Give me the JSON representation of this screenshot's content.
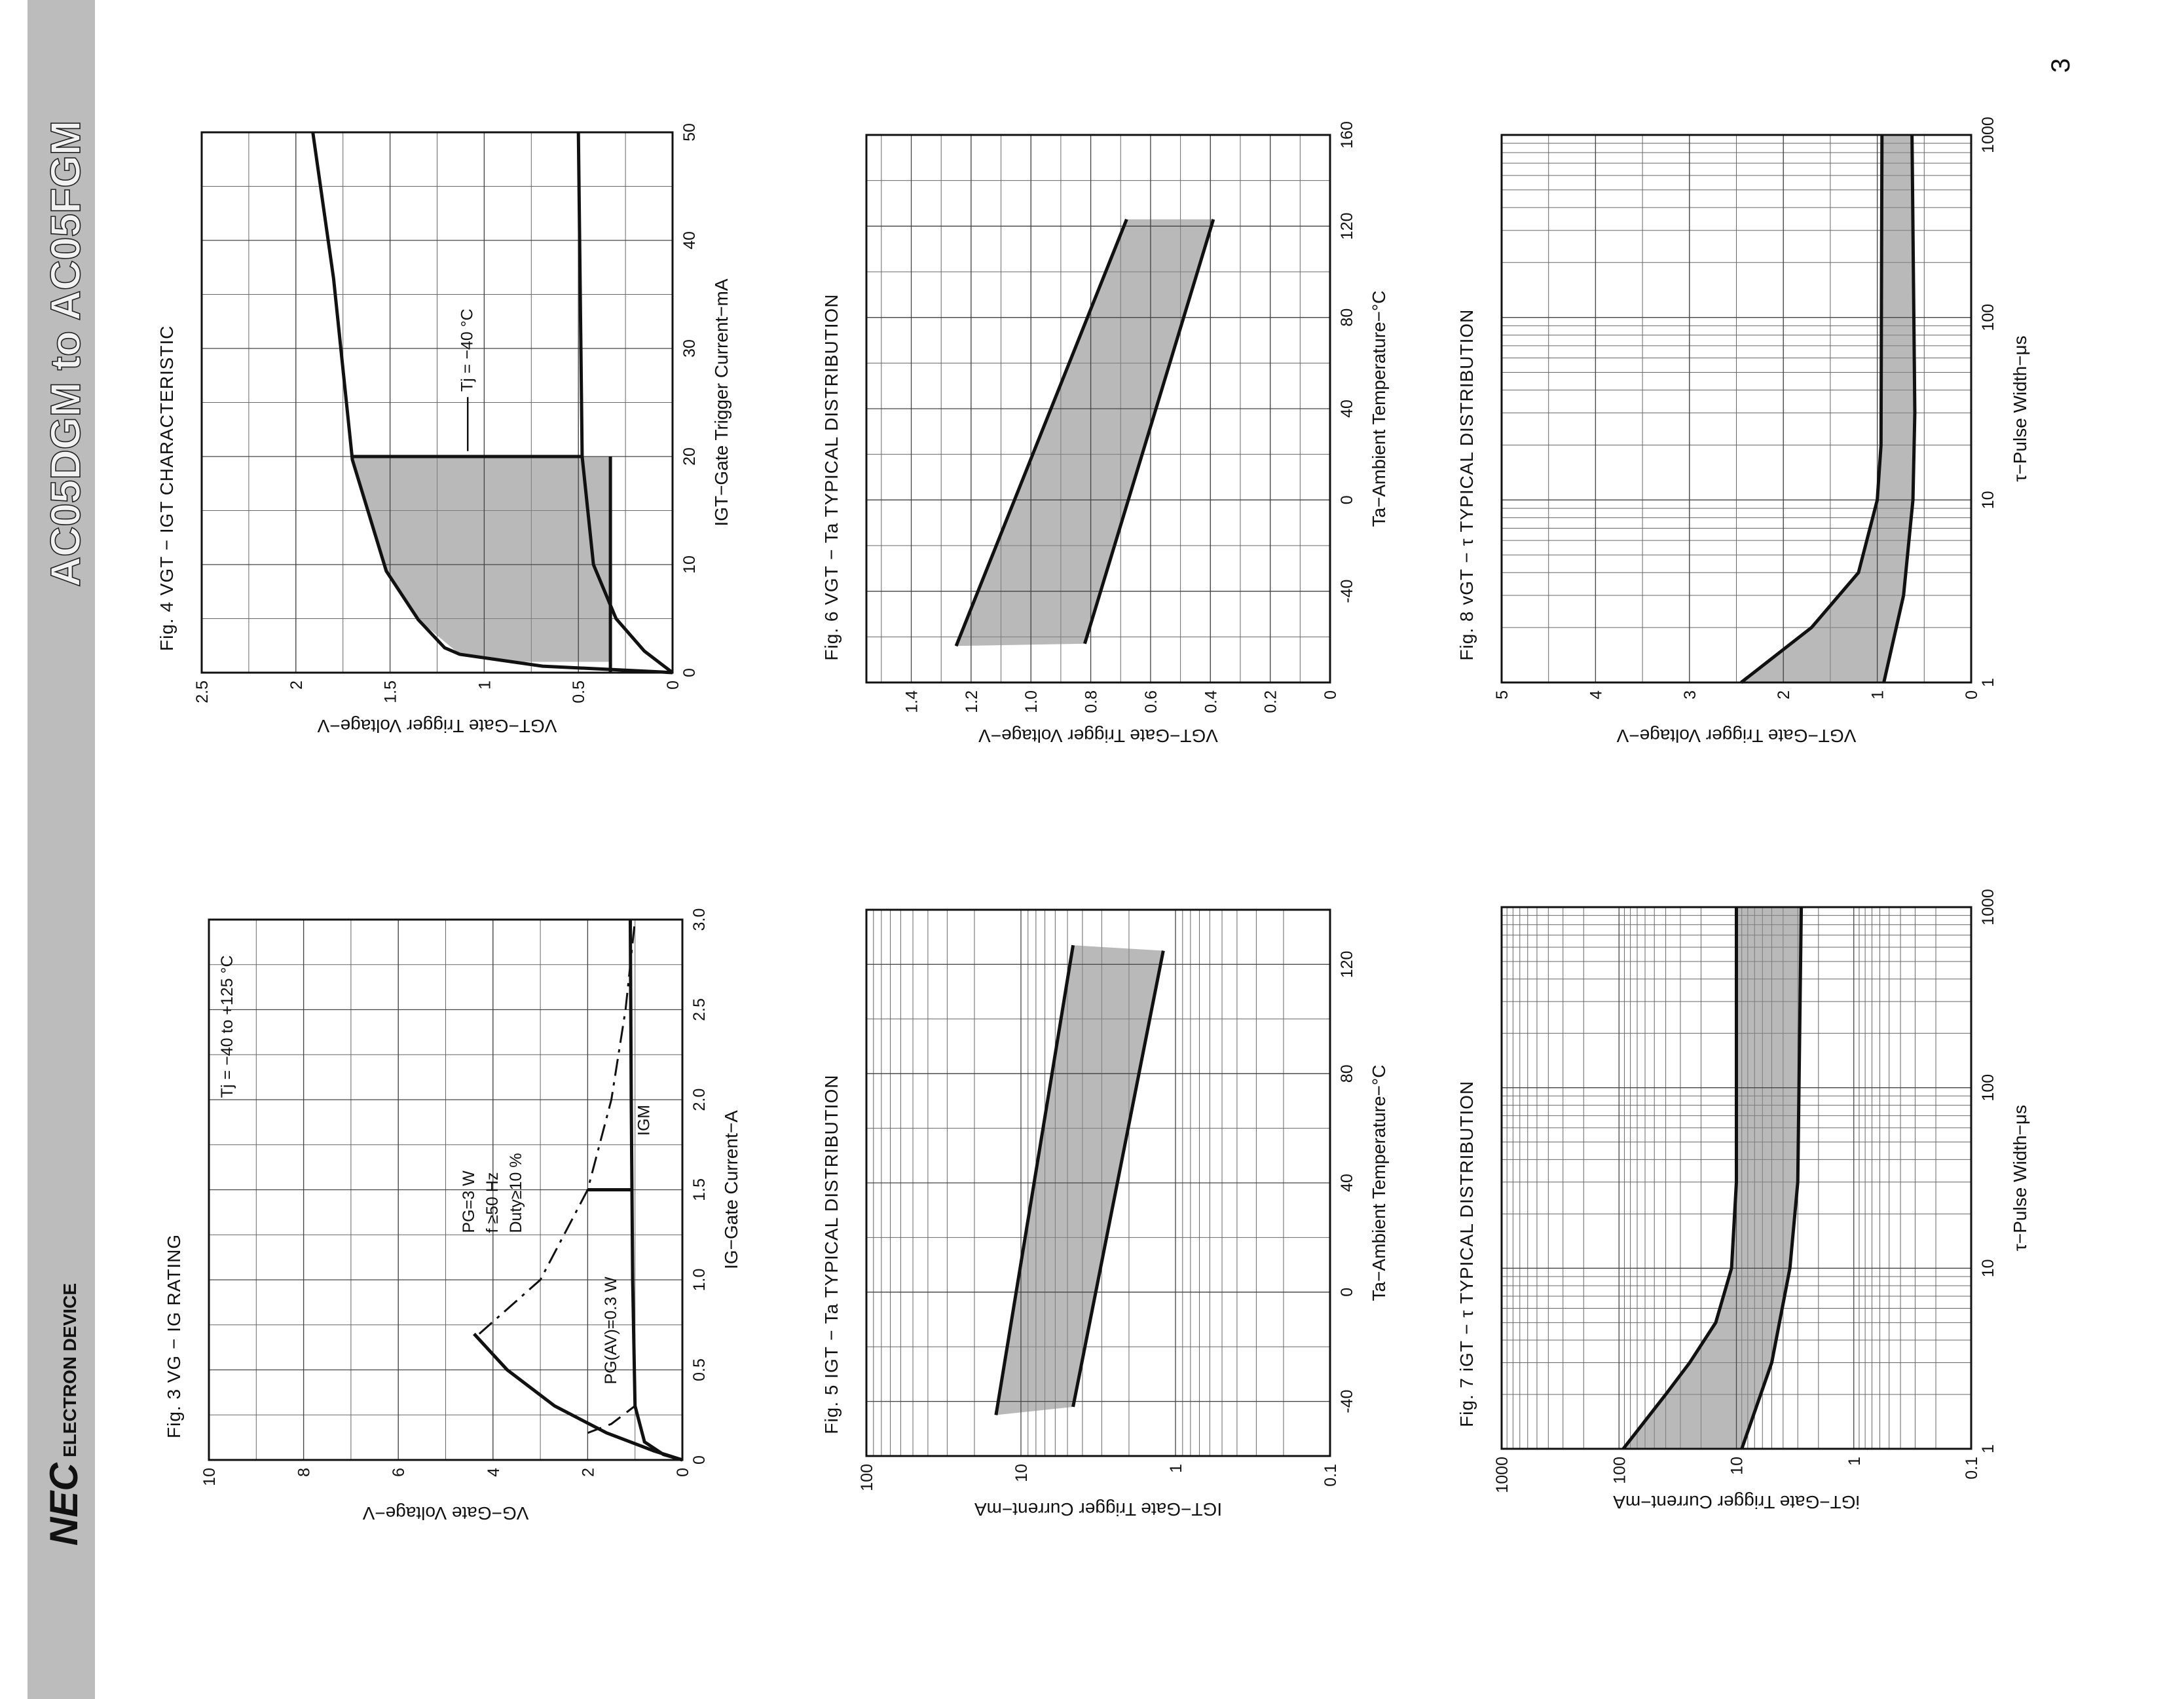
{
  "header": {
    "title": "AC05DGM to AC05FGM",
    "brand": "NEC",
    "division": "ELECTRON DEVICE",
    "page": "3"
  },
  "chart_data": [
    {
      "type": "line",
      "title": "Fig. 3 VG − IG RATING",
      "xlabel": "IG−Gate Current−A",
      "ylabel": "VG−Gate Voltage−V",
      "xlim": [
        0,
        3
      ],
      "ylim": [
        0,
        10
      ],
      "xticks": [
        0,
        0.5,
        {
          "value": 1,
          "label": "1.0"
        },
        1.5,
        {
          "value": 2,
          "label": "2.0"
        },
        2.5,
        {
          "value": 3,
          "label": "3.0"
        }
      ],
      "yticks": [
        0,
        2,
        4,
        6,
        8,
        10
      ],
      "xgrid_step": 0.25,
      "ygrid_step": 1,
      "annotations": [
        "Tj = −40 to +125 °C",
        "PG=3 W",
        "f ≥50 Hz",
        "Duty≥10 %",
        "PG(AV)=0.3 W",
        "IGM"
      ],
      "series": [
        {
          "x": [
            0,
            0.05,
            0.15,
            0.3,
            0.5,
            0.7
          ],
          "values": [
            0,
            0.6,
            1.6,
            2.7,
            3.7,
            4.4
          ],
          "color": "#111111",
          "dash": "solid"
        },
        {
          "x": [
            0.7,
            1,
            1.5,
            2,
            2.5,
            3
          ],
          "values": [
            4.29,
            3,
            2,
            1.5,
            1.2,
            1
          ],
          "color": "#111111",
          "dash": "dashdot"
        },
        {
          "x": [
            0.15,
            0.2,
            0.3
          ],
          "values": [
            2,
            1.5,
            1
          ],
          "color": "#111111",
          "dash": "dashed"
        },
        {
          "x": [
            0,
            0.03,
            0.1,
            0.3,
            1,
            2,
            3
          ],
          "values": [
            0,
            0.4,
            0.8,
            1,
            1.05,
            1.08,
            1.1
          ],
          "color": "#111111",
          "dash": "solid"
        },
        {
          "x": [
            1.5,
            1.5
          ],
          "values": [
            2,
            1.08
          ],
          "color": "#111111",
          "dash": "solid"
        }
      ]
    },
    {
      "type": "line",
      "title": "Fig. 4 VGT − IGT CHARACTERISTIC",
      "xlabel": "IGT−Gate Trigger Current−mA",
      "ylabel": "VGT−Gate Trigger Voltage−V",
      "xlim": [
        0,
        50
      ],
      "ylim": [
        0,
        2.5
      ],
      "xticks": [
        0,
        10,
        20,
        30,
        40,
        50
      ],
      "yticks": [
        0,
        0.5,
        1,
        1.5,
        2,
        2.5
      ],
      "xgrid_step": 5,
      "ygrid_step": 0.25,
      "annotations": [
        "Tj = −40 °C"
      ],
      "fills": [
        {
          "x": [
            1,
            1.7,
            4.9,
            9.4,
            20
          ],
          "upper": [
            0.9,
            1.13,
            1.35,
            1.52,
            1.7
          ],
          "lower": [
            0.33,
            0.33,
            0.33,
            0.33,
            0.33
          ],
          "color": "#8a8a8a"
        }
      ],
      "series": [
        {
          "x": [
            0,
            0.1,
            0.6,
            1.7,
            2.3,
            4.9,
            9.4,
            19.7,
            36.5,
            50
          ],
          "values": [
            0,
            0.1,
            0.69,
            1.13,
            1.21,
            1.35,
            1.52,
            1.7,
            1.8,
            1.91
          ],
          "color": "#111111",
          "dash": "solid"
        },
        {
          "x": [
            0,
            2,
            5,
            10,
            20,
            50
          ],
          "values": [
            0,
            0.15,
            0.3,
            0.42,
            0.48,
            0.5
          ],
          "color": "#111111",
          "dash": "solid"
        },
        {
          "x": [
            20,
            20
          ],
          "values": [
            1.7,
            0.48
          ],
          "color": "#111111",
          "dash": "solid"
        },
        {
          "x": [
            0,
            20
          ],
          "values": [
            0.33,
            0.33
          ],
          "color": "#111111",
          "dash": "solid"
        }
      ]
    },
    {
      "type": "band",
      "title": "Fig. 5 IGT − Ta TYPICAL DISTRIBUTION",
      "xlabel": "Ta−Ambient Temperature−°C",
      "ylabel": "IGT−Gate Trigger Current−mA",
      "xlim": [
        -60,
        140
      ],
      "ylim": [
        0.1,
        100
      ],
      "ylog": true,
      "xticks": [
        -40,
        0,
        40,
        80,
        120
      ],
      "yticks": [
        0.1,
        1,
        10,
        100
      ],
      "xgrid_step": 20,
      "fill_between": [
        0,
        1
      ],
      "fill_color": "#8a8a8a",
      "series": [
        {
          "x": [
            -45,
            127
          ],
          "values": [
            14.5,
            4.6
          ],
          "color": "#111111",
          "dash": "solid"
        },
        {
          "x": [
            -42,
            125
          ],
          "values": [
            4.6,
            1.2
          ],
          "color": "#111111",
          "dash": "solid"
        }
      ]
    },
    {
      "type": "band",
      "title": "Fig. 6 VGT − Ta TYPICAL DISTRIBUTION",
      "xlabel": "Ta−Ambient Temperature−°C",
      "ylabel": "VGT−Gate Trigger Voltage−V",
      "xlim": [
        -80,
        160
      ],
      "ylim": [
        0,
        1.55
      ],
      "xticks": [
        -40,
        0,
        40,
        80,
        120,
        160
      ],
      "yticks": [
        0,
        0.2,
        0.4,
        0.6,
        0.8,
        {
          "value": 1,
          "label": "1.0"
        },
        1.2,
        1.4
      ],
      "xgrid_step": 20,
      "ygrid_step": 0.1,
      "fill_between": [
        0,
        1
      ],
      "fill_color": "#8a8a8a",
      "series": [
        {
          "x": [
            -64,
            123
          ],
          "values": [
            1.25,
            0.68
          ],
          "color": "#111111",
          "dash": "solid"
        },
        {
          "x": [
            -63,
            123
          ],
          "values": [
            0.82,
            0.39
          ],
          "color": "#111111",
          "dash": "solid"
        }
      ]
    },
    {
      "type": "band",
      "title": "Fig. 7 iGT − τ TYPICAL DISTRIBUTION",
      "xlabel": "τ−Pulse Width−μs",
      "ylabel": "iGT−Gate Trigger Current−mA",
      "xlim": [
        1,
        1000
      ],
      "ylim": [
        0.1,
        1000
      ],
      "xlog": true,
      "ylog": true,
      "xticks": [
        1,
        10,
        100,
        1000
      ],
      "yticks": [
        0.1,
        1,
        10,
        100,
        1000
      ],
      "fill_between": [
        0,
        1
      ],
      "fill_color": "#8a8a8a",
      "series": [
        {
          "x": [
            1,
            2,
            3,
            5,
            10,
            30,
            1000
          ],
          "values": [
            92,
            40,
            25,
            15,
            11,
            10,
            10
          ],
          "color": "#111111",
          "dash": "solid"
        },
        {
          "x": [
            1,
            3,
            10,
            30,
            1000
          ],
          "values": [
            9,
            5,
            3.5,
            3,
            2.8
          ],
          "color": "#111111",
          "dash": "solid"
        }
      ]
    },
    {
      "type": "band",
      "title": "Fig. 8 vGT − τ TYPICAL DISTRIBUTION",
      "xlabel": "τ−Pulse Width−μs",
      "ylabel": "VGT−Gate Trigger Voltage−V",
      "xlim": [
        1,
        1000
      ],
      "ylim": [
        0,
        5
      ],
      "xlog": true,
      "xticks": [
        1,
        10,
        100,
        1000
      ],
      "yticks": [
        0,
        1,
        2,
        3,
        4,
        5
      ],
      "ygrid_step": 0.5,
      "fill_between": [
        0,
        1
      ],
      "fill_color": "#8a8a8a",
      "series": [
        {
          "x": [
            1,
            2,
            4,
            10,
            20,
            1000
          ],
          "values": [
            2.45,
            1.7,
            1.2,
            1,
            0.96,
            0.95
          ],
          "color": "#111111",
          "dash": "solid"
        },
        {
          "x": [
            1,
            3,
            10,
            30,
            1000
          ],
          "values": [
            0.93,
            0.72,
            0.62,
            0.6,
            0.63
          ],
          "color": "#111111",
          "dash": "solid"
        }
      ]
    }
  ]
}
